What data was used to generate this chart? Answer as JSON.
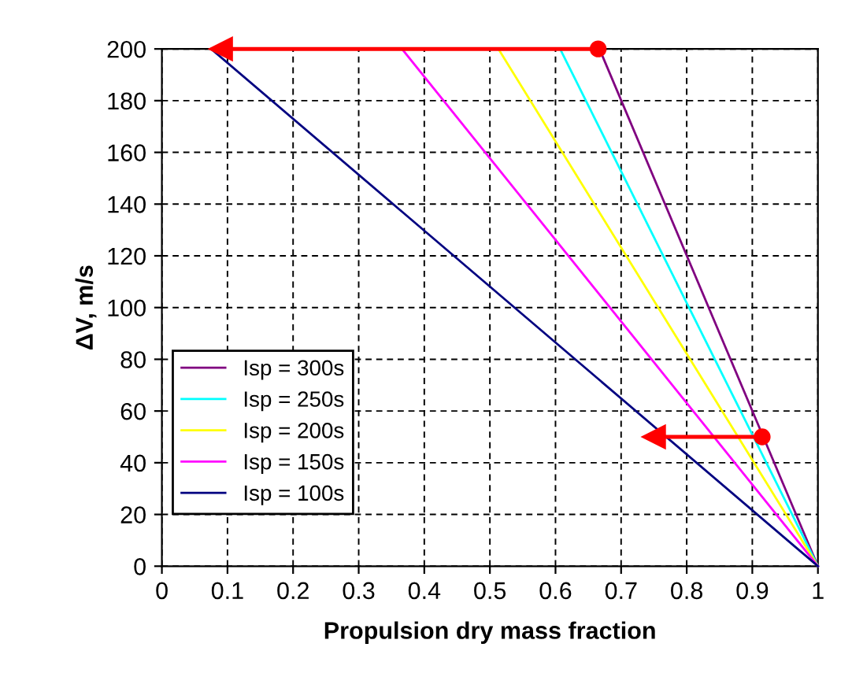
{
  "chart_data": {
    "type": "line",
    "xlabel": "Propulsion dry mass fraction",
    "ylabel": "ΔV, m/s",
    "xlim": [
      0,
      1
    ],
    "ylim": [
      0,
      200
    ],
    "xticks": [
      0,
      0.1,
      0.2,
      0.3,
      0.4,
      0.5,
      0.6,
      0.7,
      0.8,
      0.9,
      1
    ],
    "yticks": [
      0,
      20,
      40,
      60,
      80,
      100,
      120,
      140,
      160,
      180,
      200
    ],
    "grid": true,
    "legend": "bottom left",
    "line_style": "solid",
    "marker": "none",
    "series": [
      {
        "name": "Isp = 300s",
        "color": "#800080",
        "x": [
          0.667,
          1
        ],
        "values": [
          200,
          0
        ]
      },
      {
        "name": "Isp = 250s",
        "color": "#00ffff",
        "x": [
          0.607,
          1
        ],
        "values": [
          200,
          0
        ]
      },
      {
        "name": "Isp = 200s",
        "color": "#ffff00",
        "x": [
          0.513,
          1
        ],
        "values": [
          200,
          0
        ]
      },
      {
        "name": "Isp = 150s",
        "color": "#ff00ff",
        "x": [
          0.366,
          1
        ],
        "values": [
          200,
          0
        ]
      },
      {
        "name": "Isp = 100s",
        "color": "#000080",
        "x": [
          0.075,
          1
        ],
        "values": [
          200,
          0
        ]
      },
      {
        "type": "line",
        "color": "#ff0000",
        "marker": "triangle",
        "x": [
          0.665,
          0.09
        ],
        "values": [
          200,
          200
        ]
      },
      {
        "type": "line",
        "color": "#ff0000",
        "marker": "triangle",
        "x": [
          0.915,
          0.75
        ],
        "values": [
          50,
          50
        ]
      },
      {
        "type": "scatter",
        "color": "#ff0000",
        "marker": "circle",
        "x": [
          0.665,
          0.915
        ],
        "values": [
          200,
          50
        ]
      }
    ]
  }
}
